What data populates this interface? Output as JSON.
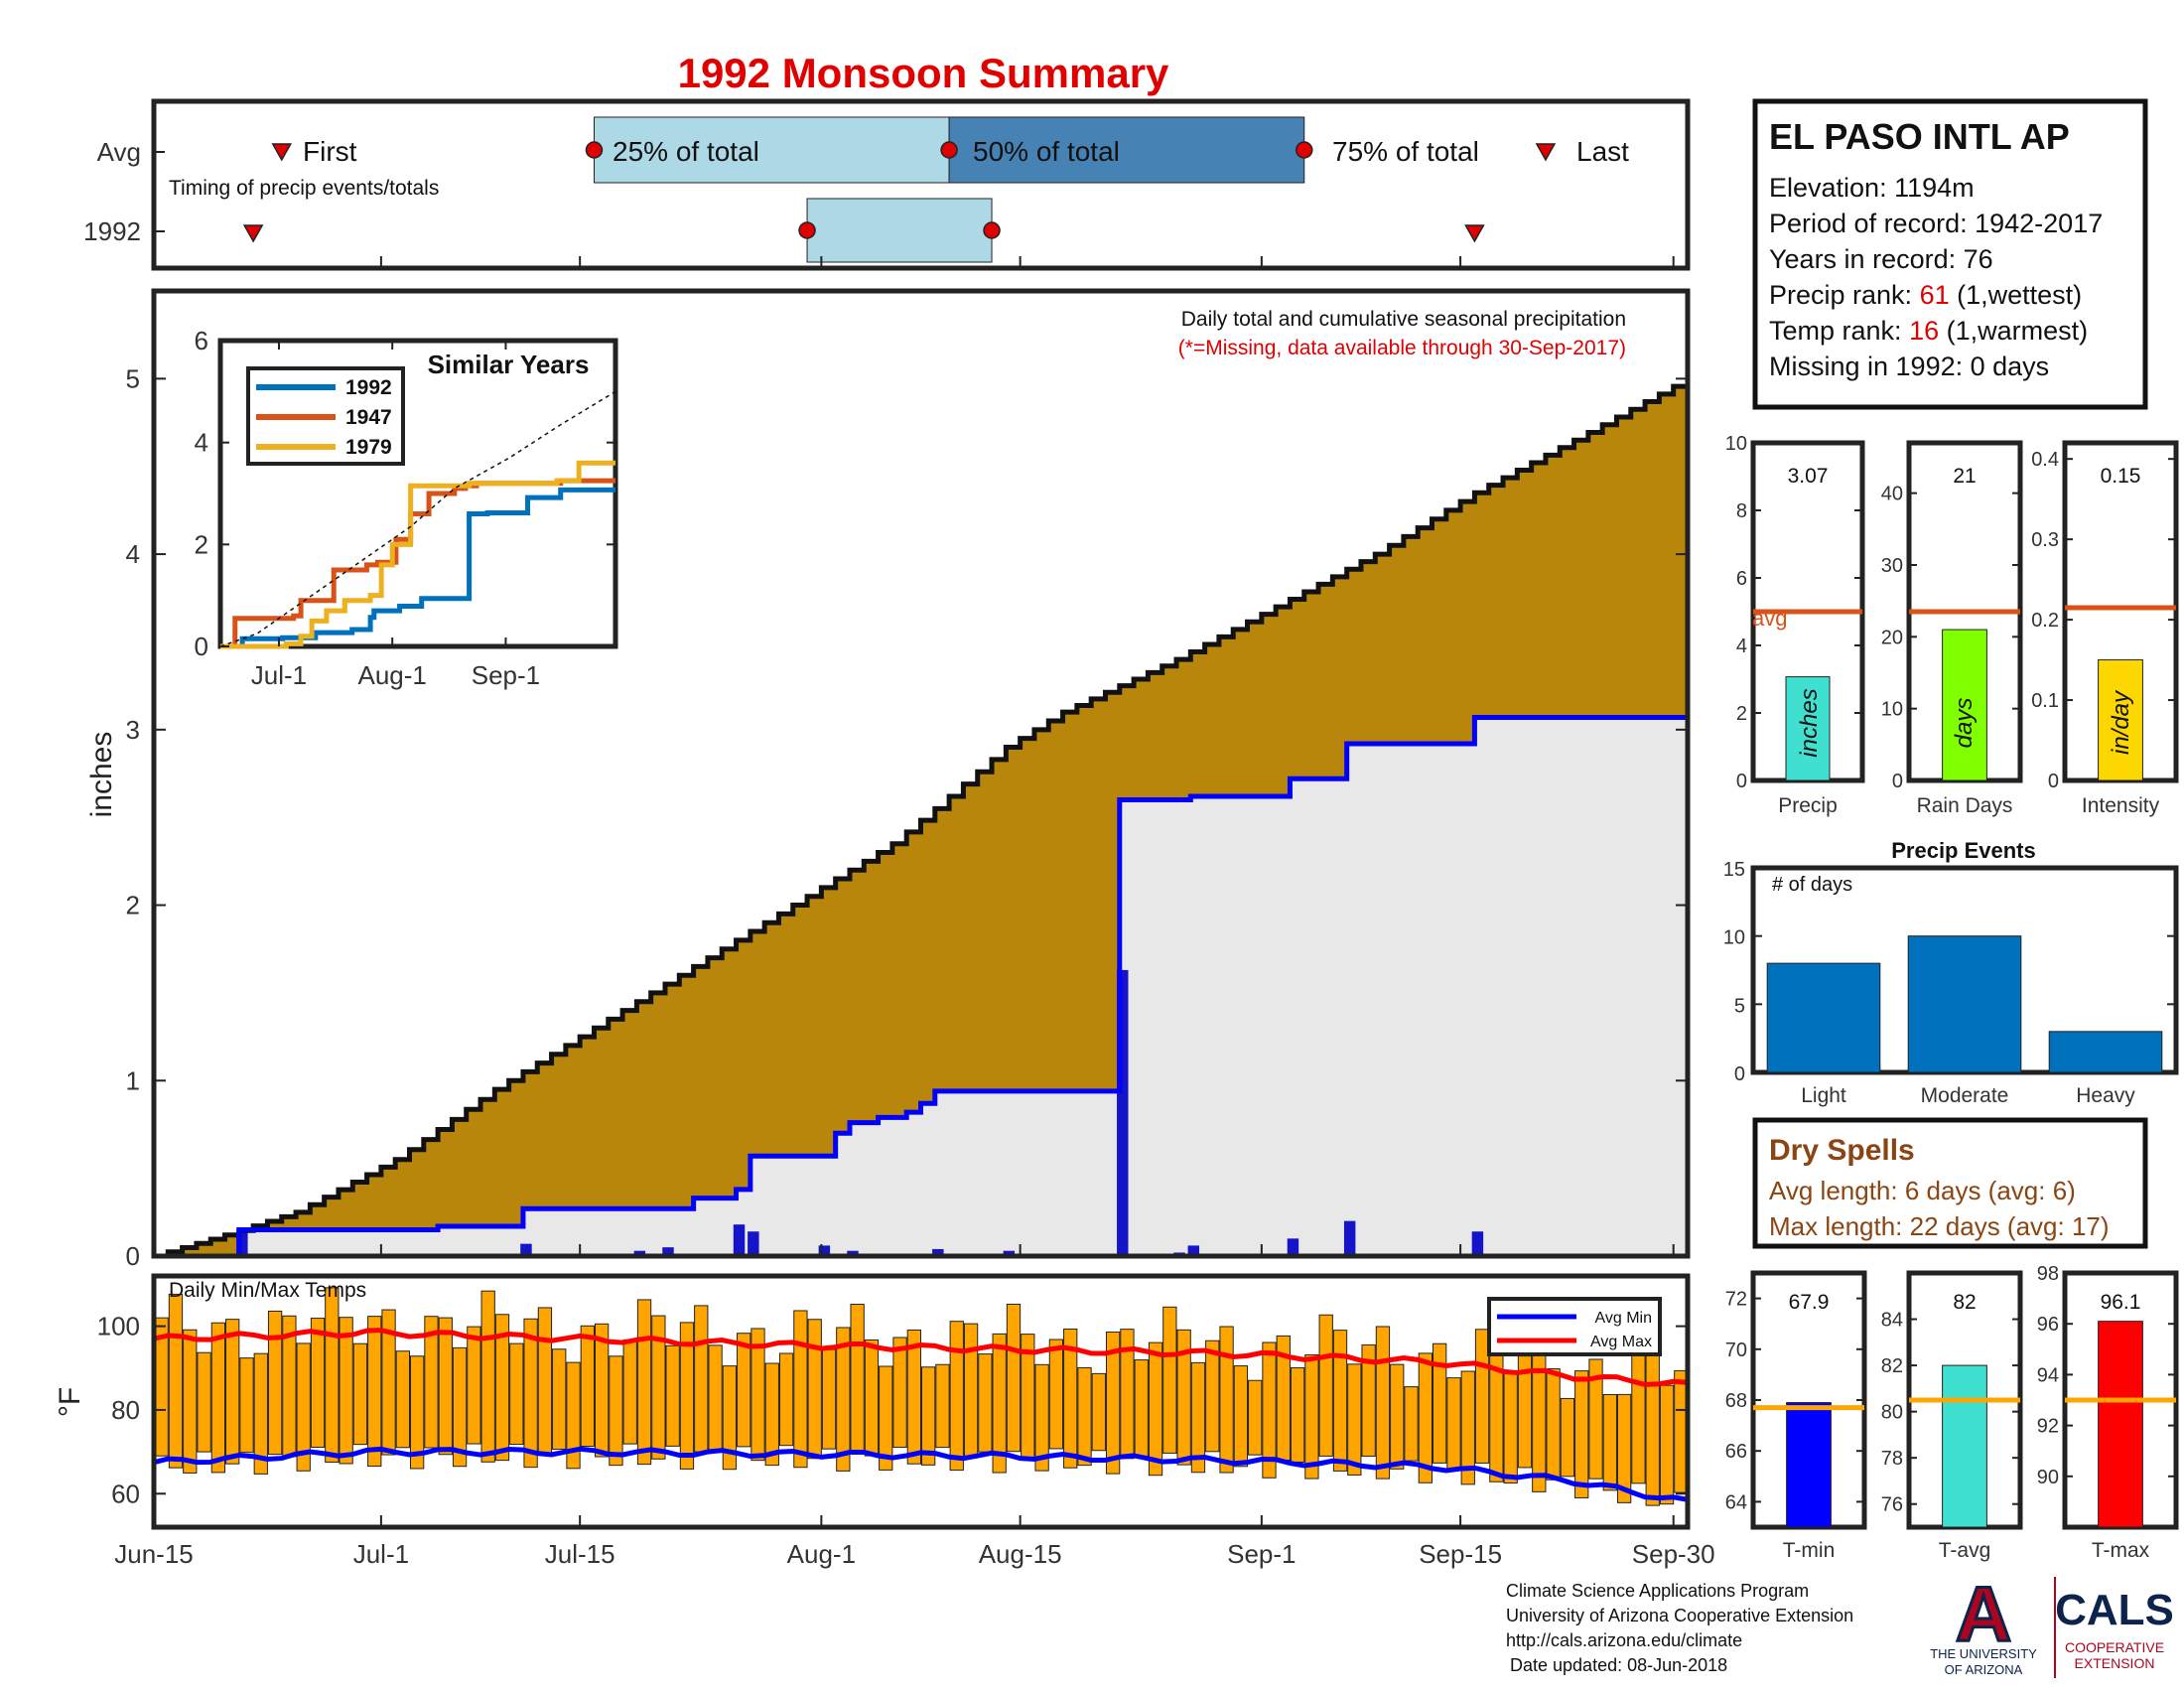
{
  "title": "1992 Monsoon Summary",
  "colors": {
    "title": "#e00000",
    "avg_light": "#add8e6",
    "avg_dark": "#4682b4",
    "marker": "#e00000",
    "seasonal_fill": "#b8860b",
    "current_fill": "#e8e8e8",
    "current_line": "#0000ff",
    "daily_bar": "#1414c8",
    "temp_bar": "#ffa500",
    "avg_min": "#0000ff",
    "avg_max": "#ff0000",
    "avg_line_small": "#d95319",
    "events_bar": "#0072bd",
    "dry_spells_text": "#8b4513",
    "similar_1992": "#0072bd",
    "similar_1947": "#d95319",
    "similar_1979": "#edb120"
  },
  "timing": {
    "row_labels": [
      "Avg",
      "1992"
    ],
    "subtitle": "Timing of precip events/totals",
    "first_label": "First",
    "p25_label": "25% of total",
    "p50_label": "50% of total",
    "p75_label": "75% of total",
    "last_label": "Last",
    "avg_first_day": 9,
    "avg_p25_day": 31,
    "avg_p50_day": 56,
    "avg_p75_day": 81,
    "avg_last_day": 98,
    "yr_first_day": 7,
    "yr_p25_day": 46,
    "yr_p75_day": 59,
    "yr_last_day": 93
  },
  "station": {
    "name": "EL PASO INTL AP",
    "elevation": "Elevation: 1194m",
    "period": "Period of record: 1942-2017",
    "years": "Years in record: 76",
    "precip_rank_pre": "Precip rank: ",
    "precip_rank_val": "61",
    "precip_rank_post": " (1,wettest)",
    "temp_rank_pre": "Temp rank: ",
    "temp_rank_val": "16",
    "temp_rank_post": " (1,warmest)",
    "missing": "Missing in 1992: 0 days"
  },
  "main_chart": {
    "annotation1": "Daily total and cumulative seasonal precipitation",
    "annotation2": "(*=Missing, data available through 30-Sep-2017)",
    "ylabel": "inches",
    "y_ticks": [
      "0",
      "1",
      "2",
      "3",
      "4",
      "5"
    ],
    "ylim": [
      0,
      5.5
    ]
  },
  "similar_years": {
    "title": "Similar Years",
    "legend": [
      "1992",
      "1947",
      "1979"
    ],
    "y_ticks": [
      "0",
      "2",
      "4",
      "6"
    ],
    "x_ticks": [
      "Jul-1",
      "Aug-1",
      "Sep-1"
    ]
  },
  "temps": {
    "title": "Daily Min/Max Temps",
    "ylabel": "°F",
    "y_ticks": [
      "60",
      "80",
      "100"
    ],
    "legend_min": "Avg Min",
    "legend_max": "Avg Max"
  },
  "x_axis": {
    "ticks": [
      "Jun-15",
      "Jul-1",
      "Jul-15",
      "Aug-1",
      "Aug-15",
      "Sep-1",
      "Sep-15",
      "Sep-30"
    ]
  },
  "small_precip": {
    "value": "3.07",
    "avg": 5.0,
    "y_ticks": [
      "0",
      "2",
      "4",
      "6",
      "8",
      "10"
    ],
    "avg_label": "avg",
    "bar_label": "inches",
    "xlabel": "Precip",
    "num": 3.07
  },
  "small_raindays": {
    "value": "21",
    "avg": 23.5,
    "y_ticks": [
      "0",
      "10",
      "20",
      "30",
      "40"
    ],
    "bar_label": "days",
    "xlabel": "Rain Days",
    "num": 21
  },
  "small_intensity": {
    "value": "0.15",
    "avg": 0.215,
    "y_ticks": [
      "0",
      "0.1",
      "0.2",
      "0.3",
      "0.4"
    ],
    "bar_label": "in/day",
    "xlabel": "Intensity",
    "num": 0.15
  },
  "events": {
    "title": "Precip Events",
    "sub": "# of days",
    "y_ticks": [
      "0",
      "5",
      "10",
      "15"
    ],
    "categories": [
      "Light",
      "Moderate",
      "Heavy"
    ],
    "values": [
      8,
      10,
      3
    ]
  },
  "dry_spells": {
    "title": "Dry Spells",
    "avg_len": "Avg length: 6 days (avg: 6)",
    "max_len": "Max length: 22 days (avg: 17)"
  },
  "small_tmin": {
    "value": "67.9",
    "num": 67.9,
    "avg": 67.7,
    "y_ticks": [
      "64",
      "66",
      "68",
      "70",
      "72"
    ],
    "xlabel": "T-min"
  },
  "small_tavg": {
    "value": "82",
    "num": 82,
    "avg": 80.5,
    "y_ticks": [
      "76",
      "78",
      "80",
      "82",
      "84"
    ],
    "xlabel": "T-avg"
  },
  "small_tmax": {
    "value": "96.1",
    "num": 96.1,
    "avg": 93,
    "y_ticks": [
      "90",
      "92",
      "94",
      "96",
      "98"
    ],
    "xlabel": "T-max"
  },
  "footer": {
    "line1": "Climate Science Applications Program",
    "line2": "University of Arizona Cooperative Extension",
    "line3": "http://cals.arizona.edu/climate",
    "line4": "Date updated: 08-Jun-2018",
    "ua_letter": "A",
    "ua_line1": "THE UNIVERSITY",
    "ua_line2": "OF ARIZONA",
    "cals": "CALS",
    "cals_sub1": "COOPERATIVE",
    "cals_sub2": "EXTENSION"
  },
  "chart_data": [
    {
      "type": "area",
      "title": "Daily total and cumulative seasonal precipitation",
      "xlabel": "",
      "ylabel": "inches",
      "x_range": [
        "Jun-15",
        "Sep-30"
      ],
      "ylim": [
        0,
        5.5
      ],
      "series": [
        {
          "name": "seasonal average cumulative",
          "x_day": [
            0,
            5,
            10,
            17,
            24,
            31,
            38,
            46,
            52,
            55,
            60,
            64,
            72,
            79,
            86,
            93,
            100,
            108
          ],
          "values": [
            0,
            0.12,
            0.25,
            0.55,
            0.95,
            1.3,
            1.65,
            2.05,
            2.35,
            2.55,
            2.9,
            3.1,
            3.4,
            3.7,
            4.0,
            4.35,
            4.65,
            5.0
          ]
        },
        {
          "name": "1992 cumulative",
          "x_day": [
            0,
            5,
            6,
            17,
            20,
            26,
            33,
            38,
            41,
            42,
            47,
            48,
            49,
            51,
            53,
            54,
            55,
            58,
            67,
            68,
            72,
            73,
            80,
            84,
            92,
            93,
            108
          ],
          "values": [
            0,
            0,
            0.15,
            0.15,
            0.17,
            0.27,
            0.27,
            0.33,
            0.38,
            0.57,
            0.57,
            0.7,
            0.76,
            0.79,
            0.82,
            0.87,
            0.94,
            0.94,
            0.94,
            2.6,
            2.6,
            2.62,
            2.72,
            2.92,
            2.92,
            3.07,
            3.07
          ]
        },
        {
          "name": "1992 daily",
          "x_day": [
            6,
            26,
            34,
            36,
            41,
            42,
            47,
            49,
            52,
            55,
            60,
            67,
            68,
            72,
            73,
            80,
            84,
            93
          ],
          "values": [
            0.15,
            0.07,
            0.03,
            0.05,
            0.18,
            0.14,
            0.06,
            0.03,
            0.01,
            0.04,
            0.03,
            0.01,
            1.63,
            0.02,
            0.06,
            0.1,
            0.2,
            0.14
          ]
        }
      ]
    },
    {
      "type": "line",
      "title": "Similar Years",
      "x_ticks": [
        "Jul-1",
        "Aug-1",
        "Sep-1"
      ],
      "ylim": [
        0,
        6
      ],
      "series": [
        {
          "name": "1992",
          "x_day": [
            0,
            6,
            17,
            26,
            36,
            41,
            42,
            49,
            55,
            57,
            68,
            73,
            84,
            93,
            108
          ],
          "values": [
            0,
            0.15,
            0.17,
            0.27,
            0.33,
            0.57,
            0.7,
            0.79,
            0.94,
            0.94,
            2.6,
            2.62,
            2.92,
            3.07,
            3.07
          ]
        },
        {
          "name": "1947",
          "x_day": [
            0,
            4,
            20,
            22,
            31,
            40,
            43,
            48,
            52,
            57,
            64,
            67,
            70,
            90,
            93,
            108
          ],
          "values": [
            0,
            0.55,
            0.6,
            0.9,
            1.5,
            1.6,
            1.65,
            2.1,
            2.6,
            3.0,
            3.1,
            3.15,
            3.2,
            3.2,
            3.25,
            3.25
          ]
        },
        {
          "name": "1979",
          "x_day": [
            0,
            18,
            22,
            25,
            29,
            34,
            41,
            44,
            47,
            52,
            60,
            68,
            74,
            85,
            92,
            98,
            108
          ],
          "values": [
            0,
            0.05,
            0.2,
            0.5,
            0.7,
            0.9,
            1.0,
            1.6,
            2.0,
            3.15,
            3.15,
            3.2,
            3.2,
            3.2,
            3.25,
            3.6,
            3.6
          ]
        },
        {
          "name": "average",
          "x_day": [
            0,
            10,
            24,
            38,
            52,
            64,
            79,
            93,
            108
          ],
          "values": [
            0,
            0.25,
            0.95,
            1.65,
            2.35,
            3.1,
            3.7,
            4.35,
            5.0
          ]
        }
      ]
    },
    {
      "type": "bar",
      "title": "Daily Min/Max Temps",
      "ylabel": "°F",
      "ylim": [
        52,
        112
      ],
      "x_range": [
        "Jun-15",
        "Sep-30"
      ],
      "series": [
        {
          "name": "Avg Min",
          "x_day": [
            0,
            15,
            30,
            45,
            60,
            75,
            90,
            100,
            108
          ],
          "values": [
            67.5,
            70,
            70,
            69.5,
            69,
            68,
            66.5,
            63,
            58
          ]
        },
        {
          "name": "Avg Max",
          "x_day": [
            0,
            15,
            30,
            45,
            60,
            75,
            90,
            100,
            108
          ],
          "values": [
            97,
            98.5,
            97,
            95.5,
            94.5,
            93.5,
            91.5,
            88,
            86
          ]
        }
      ]
    },
    {
      "type": "bar",
      "categories": [
        "Precip"
      ],
      "values": [
        3.07
      ],
      "ylim": [
        0,
        10
      ],
      "avg": 5.0
    },
    {
      "type": "bar",
      "categories": [
        "Rain Days"
      ],
      "values": [
        21
      ],
      "ylim": [
        0,
        47
      ],
      "avg": 23.5
    },
    {
      "type": "bar",
      "categories": [
        "Intensity"
      ],
      "values": [
        0.15
      ],
      "ylim": [
        0,
        0.42
      ],
      "avg": 0.215
    },
    {
      "type": "bar",
      "title": "Precip Events",
      "categories": [
        "Light",
        "Moderate",
        "Heavy"
      ],
      "values": [
        8,
        10,
        3
      ],
      "ylim": [
        0,
        15
      ]
    },
    {
      "type": "bar",
      "categories": [
        "T-min"
      ],
      "values": [
        67.9
      ],
      "ylim": [
        63,
        73
      ],
      "avg": 67.7
    },
    {
      "type": "bar",
      "categories": [
        "T-avg"
      ],
      "values": [
        82
      ],
      "ylim": [
        75,
        86
      ],
      "avg": 80.5
    },
    {
      "type": "bar",
      "categories": [
        "T-max"
      ],
      "values": [
        96.1
      ],
      "ylim": [
        88,
        98
      ],
      "avg": 93
    }
  ]
}
